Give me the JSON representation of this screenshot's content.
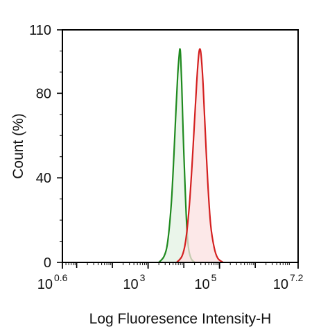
{
  "chart_data": {
    "type": "area",
    "title": "",
    "xlabel": "Log Fluoresence Intensity-H",
    "ylabel": "Count  (%)",
    "x_scale": "log",
    "xlim_log10": [
      0.6,
      7.2
    ],
    "ylim": [
      0,
      110
    ],
    "x_ticks": [
      {
        "base": "10",
        "exp": "0.6",
        "value": 0.6
      },
      {
        "base": "10",
        "exp": "3",
        "value": 3
      },
      {
        "base": "10",
        "exp": "5",
        "value": 5
      },
      {
        "base": "10",
        "exp": "7.2",
        "value": 7.2
      }
    ],
    "y_ticks": [
      "0",
      "40",
      "80",
      "110"
    ],
    "y_tick_values": [
      0,
      40,
      80,
      110
    ],
    "grid": false,
    "series": [
      {
        "color": "#1f8a1f",
        "fill": "#e3f1e3",
        "peak_log10": 3.89,
        "peak_count": 101,
        "points_log10": [
          3.3,
          3.45,
          3.55,
          3.65,
          3.72,
          3.78,
          3.83,
          3.87,
          3.89,
          3.91,
          3.94,
          3.98,
          4.03,
          4.08,
          4.13,
          4.2,
          4.3
        ],
        "points_count": [
          0,
          3,
          10,
          28,
          50,
          72,
          89,
          98,
          101,
          98,
          85,
          62,
          38,
          18,
          7,
          2,
          0
        ]
      },
      {
        "color": "#d42020",
        "fill": "#fbe0e0",
        "peak_log10": 4.45,
        "peak_count": 101,
        "points_log10": [
          3.8,
          3.95,
          4.05,
          4.15,
          4.23,
          4.3,
          4.36,
          4.41,
          4.45,
          4.49,
          4.54,
          4.6,
          4.67,
          4.75,
          4.85,
          4.95,
          5.1
        ],
        "points_count": [
          0,
          3,
          10,
          26,
          46,
          67,
          85,
          97,
          101,
          97,
          84,
          62,
          38,
          18,
          7,
          2,
          0
        ]
      }
    ]
  }
}
